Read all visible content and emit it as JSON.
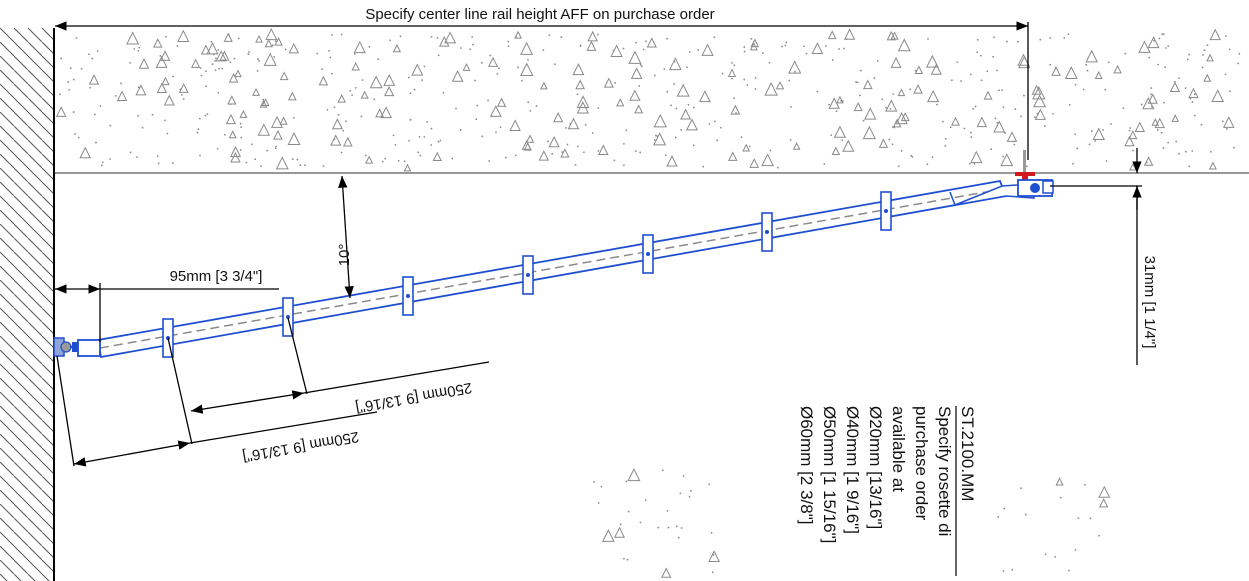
{
  "drawing": {
    "top_dimension": "Specify center line rail height AFF on purchase order",
    "angle": "10°",
    "offset_wall": "95mm [3 3/4\"]",
    "spacing_1": "250mm [9 13/16\"]",
    "spacing_2": "250mm [9 13/16\"]",
    "drop_height": "31mm [1 1/4\"]"
  },
  "note": {
    "code": "ST.2100.MM",
    "lines": [
      "Specify rosette di",
      "purchase order",
      "available at",
      "Ø20mm [13/16\"]",
      "Ø40mm [1 9/16\"]",
      "Ø50mm [1 15/16\"]",
      "Ø60mm [2 3/8\"]"
    ]
  },
  "colors": {
    "rail": "#1f4fd1",
    "dimension": "#000000",
    "centerline": "#8a8a8a",
    "bracket_accent": "#d0191f",
    "concrete_speckle": "#8a8a8a"
  }
}
